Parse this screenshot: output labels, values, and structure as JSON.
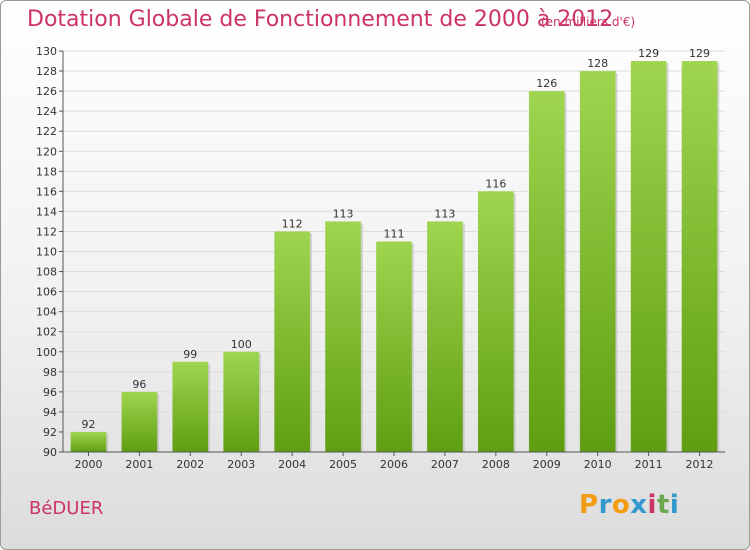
{
  "chart_data": {
    "type": "bar",
    "title": "Dotation Globale de Fonctionnement de 2000 à 2012",
    "subtitle": "(en milliers d'€)",
    "categories": [
      "2000",
      "2001",
      "2002",
      "2003",
      "2004",
      "2005",
      "2006",
      "2007",
      "2008",
      "2009",
      "2010",
      "2011",
      "2012"
    ],
    "values": [
      92,
      96,
      99,
      100,
      112,
      113,
      111,
      113,
      116,
      126,
      128,
      129,
      129
    ],
    "ylim": [
      90,
      130
    ],
    "ytick_step": 2,
    "grid": true,
    "bar_color": "#7cc12e",
    "title_color": "#cc3366"
  },
  "footer": {
    "town": "BéDUER",
    "logo_letters": [
      "P",
      "r",
      "o",
      "x",
      "i",
      "t",
      "i"
    ],
    "logo_colors": [
      "#f39c12",
      "#3399cc",
      "#f39c12",
      "#3399cc",
      "#cc3366",
      "#6aa84f",
      "#3399cc"
    ]
  }
}
